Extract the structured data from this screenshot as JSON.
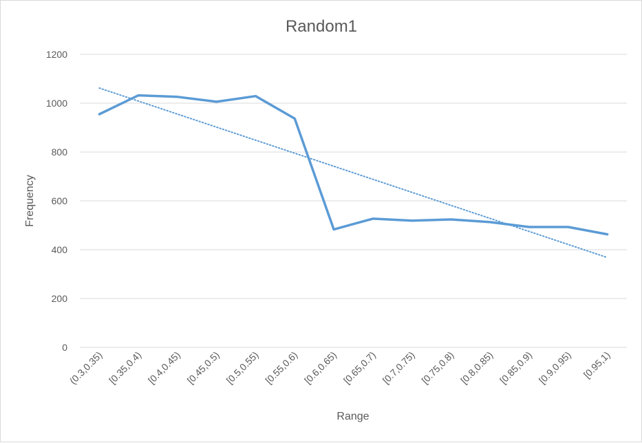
{
  "chart_data": {
    "type": "line",
    "title": "Random1",
    "xlabel": "Range",
    "ylabel": "Frequency",
    "categories": [
      "(0.3,0.35)",
      "[0.35,0.4)",
      "[0.4,0.45)",
      "[0.45,0.5)",
      "[0.5,0.55)",
      "[0.55,0.6)",
      "[0.6,0.65)",
      "[0.65,0.7)",
      "[0.7,0.75)",
      "[0.75,0.8)",
      "[0.8,0.85)",
      "[0.85,0.9)",
      "[0.9,0.95)",
      "[0.95,1)"
    ],
    "series": [
      {
        "values": [
          955,
          1032,
          1026,
          1006,
          1029,
          937,
          483,
          527,
          519,
          524,
          513,
          493,
          493,
          463
        ],
        "color": "#5b9bd5"
      }
    ],
    "trendline": {
      "type": "linear",
      "style": "dotted",
      "color": "#5b9bd5",
      "start": 1062,
      "end": 368
    },
    "ylim": [
      0,
      1200
    ],
    "yticks": [
      0,
      200,
      400,
      600,
      800,
      1000,
      1200
    ],
    "grid": true,
    "legend": "none"
  }
}
